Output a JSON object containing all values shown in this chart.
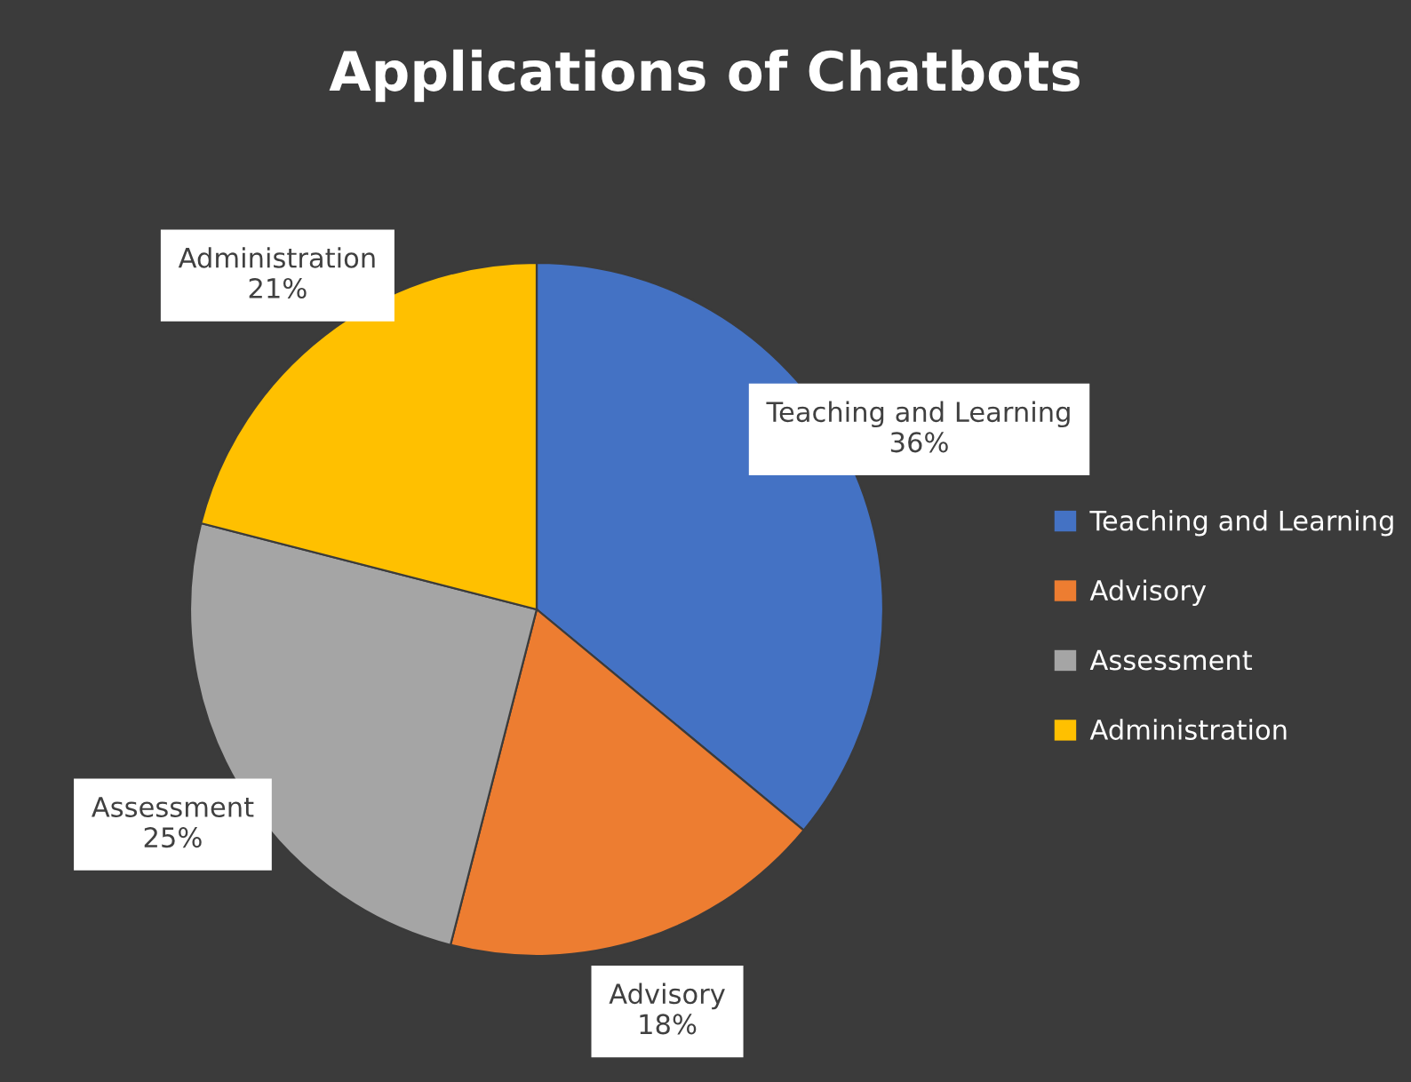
{
  "chart_data": {
    "type": "pie",
    "title": "Applications of Chatbots",
    "categories": [
      "Teaching and Learning",
      "Advisory",
      "Assessment",
      "Administration"
    ],
    "values": [
      36,
      18,
      25,
      21
    ],
    "colors": [
      "#4472c4",
      "#ed7d31",
      "#a5a5a5",
      "#ffc000"
    ],
    "value_labels": [
      "36%",
      "18%",
      "25%",
      "21%"
    ],
    "legend": "right"
  }
}
